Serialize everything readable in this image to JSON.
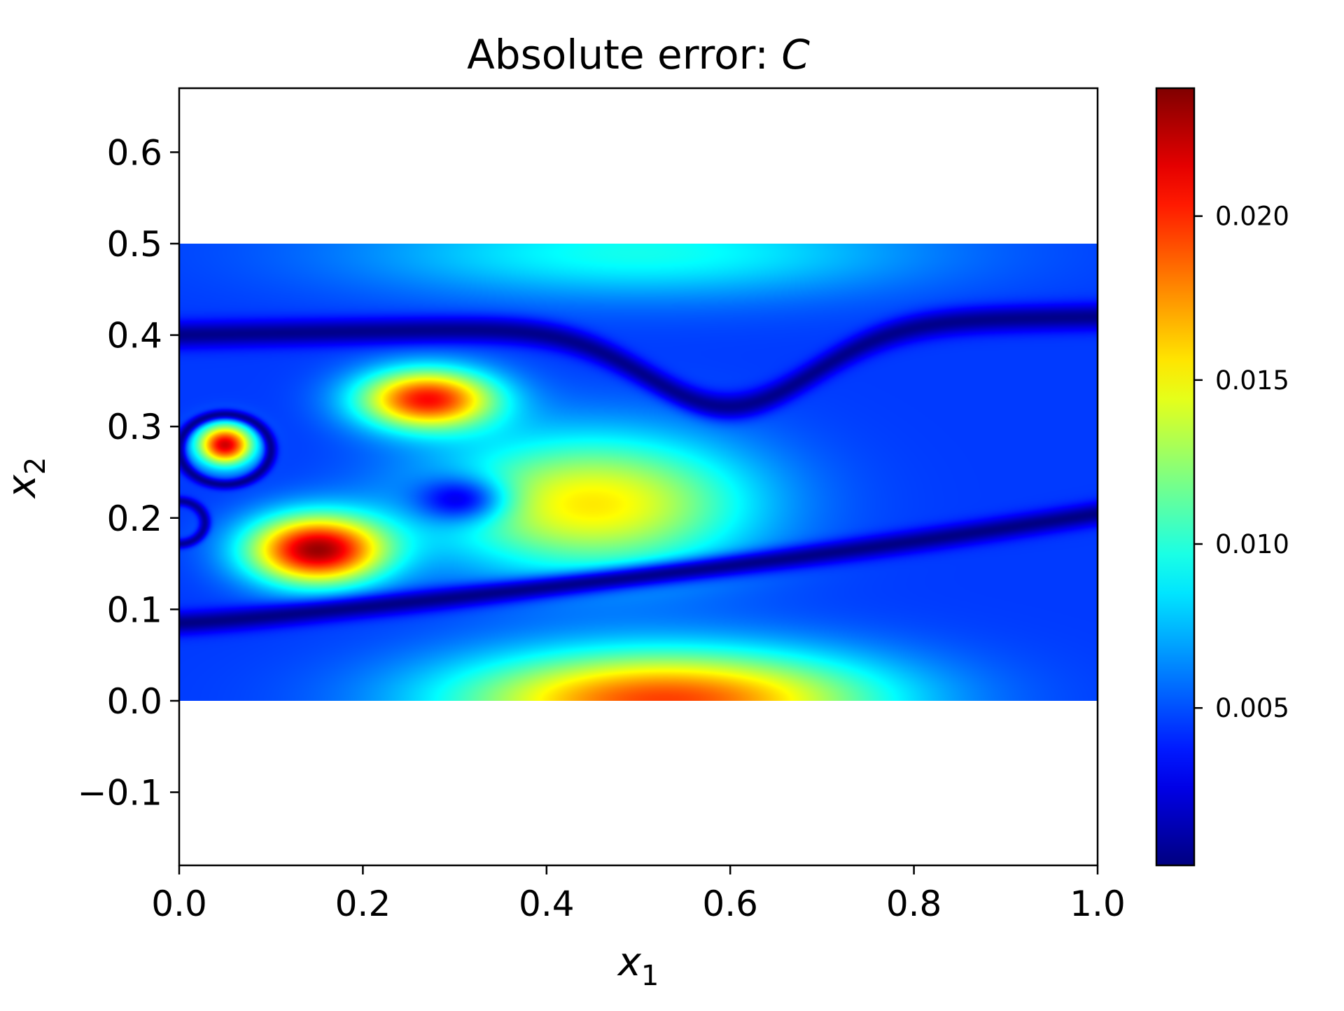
{
  "chart_data": {
    "type": "heatmap",
    "title": "Absolute error: ",
    "title_symbol": "C",
    "xlabel": "x",
    "xlabel_sub": "1",
    "ylabel": "x",
    "ylabel_sub": "2",
    "xlim": [
      0.0,
      1.0
    ],
    "ylim": [
      -0.18,
      0.67
    ],
    "data_extent": {
      "x": [
        0.0,
        1.0
      ],
      "y": [
        0.0,
        0.5
      ]
    },
    "xticks": [
      0.0,
      0.2,
      0.4,
      0.6,
      0.8,
      1.0
    ],
    "xtick_labels": [
      "0.0",
      "0.2",
      "0.4",
      "0.6",
      "0.8",
      "1.0"
    ],
    "yticks": [
      -0.1,
      0.0,
      0.1,
      0.2,
      0.3,
      0.4,
      0.5,
      0.6
    ],
    "ytick_labels": [
      "−0.1",
      "0.0",
      "0.1",
      "0.2",
      "0.3",
      "0.4",
      "0.5",
      "0.6"
    ],
    "colorbar": {
      "colormap": "jet",
      "range": [
        0.0002,
        0.0239
      ],
      "ticks": [
        0.005,
        0.01,
        0.015,
        0.02
      ],
      "tick_labels": [
        "0.005",
        "0.010",
        "0.015",
        "0.020"
      ]
    },
    "grid": false,
    "features": [
      {
        "kind": "peak",
        "x": 0.15,
        "y": 0.165,
        "value": 0.0238
      },
      {
        "kind": "peak",
        "x": 0.27,
        "y": 0.33,
        "value": 0.021
      },
      {
        "kind": "peak",
        "x": 0.05,
        "y": 0.28,
        "value": 0.022
      },
      {
        "kind": "peak",
        "x": 0.53,
        "y": 0.005,
        "value": 0.0195
      },
      {
        "kind": "plateau",
        "x": 0.52,
        "y": 0.21,
        "value": 0.015
      },
      {
        "kind": "local_min",
        "x": 0.31,
        "y": 0.22,
        "value": 0.007
      },
      {
        "kind": "band",
        "x": 0.5,
        "y": 0.49,
        "value": 0.009
      }
    ]
  }
}
